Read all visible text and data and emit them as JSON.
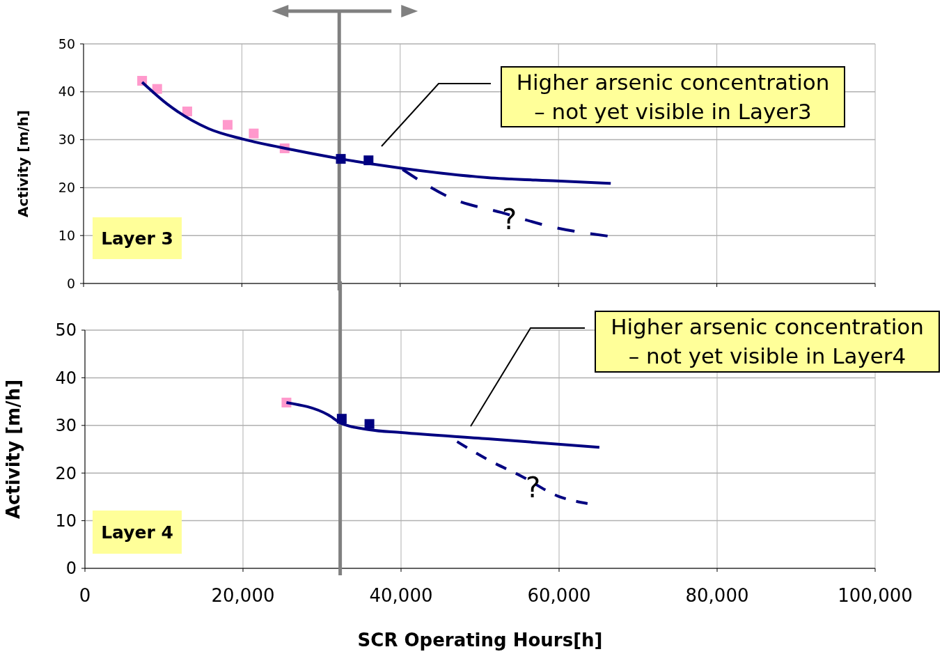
{
  "chart_data": [
    {
      "type": "scatter",
      "ylabel": "Activity [m/h]",
      "xlim": [
        0,
        100000
      ],
      "xticks": [
        0,
        20000,
        40000,
        60000,
        80000,
        100000
      ],
      "ylim": [
        0,
        50
      ],
      "yticks": [
        0,
        10,
        20,
        30,
        40,
        50
      ],
      "grid": true,
      "tick_labels": "y",
      "marker": "square",
      "series": [
        {
          "color": "#ff99cc",
          "x": [
            7400,
            9300,
            13100,
            18200,
            21500,
            25400
          ],
          "values": [
            42.3,
            40.6,
            35.9,
            33.1,
            31.3,
            28.2
          ]
        },
        {
          "color": "#000080",
          "x": [
            32500,
            36000
          ],
          "values": [
            26.0,
            25.7
          ]
        },
        {
          "type": "line",
          "color": "#000080",
          "marker": "none",
          "line_style": "solid",
          "x": [
            7400,
            10600,
            15800,
            20200,
            26400,
            32500,
            40000,
            51000,
            59800,
            66600
          ],
          "values": [
            42,
            37.4,
            32.3,
            30.1,
            27.9,
            26,
            24.1,
            22.1,
            21.4,
            20.9
          ]
        },
        {
          "type": "line",
          "color": "#000080",
          "marker": "none",
          "line_style": "dashed",
          "x": [
            40300,
            46600,
            52800,
            58900,
            66200
          ],
          "values": [
            23.8,
            17.7,
            14.8,
            11.9,
            9.9
          ]
        }
      ],
      "ref_lines": [
        {
          "axis": "x",
          "value": 32300,
          "color": "#808080"
        }
      ],
      "annotations": [
        "Higher arsenic concentration\n– not yet visible in Layer3",
        "Layer 3",
        {
          "text": "?",
          "x": 53800,
          "y": 13.4
        }
      ]
    },
    {
      "type": "scatter",
      "xlabel": "SCR Operating Hours[h]",
      "ylabel": "Activity [m/h]",
      "xlim": [
        0,
        100000
      ],
      "xticks": [
        {
          "value": 0,
          "label": "0"
        },
        {
          "value": 20000,
          "label": "20,000"
        },
        {
          "value": 40000,
          "label": "40,000"
        },
        {
          "value": 60000,
          "label": "60,000"
        },
        {
          "value": 80000,
          "label": "80,000"
        },
        {
          "value": 100000,
          "label": "100,000"
        }
      ],
      "ylim": [
        0,
        50
      ],
      "yticks": [
        0,
        10,
        20,
        30,
        40,
        50
      ],
      "grid": true,
      "marker": "square",
      "series": [
        {
          "color": "#ff99cc",
          "x": [
            25500
          ],
          "values": [
            34.8
          ]
        },
        {
          "color": "#000080",
          "x": [
            32500,
            36000
          ],
          "values": [
            31.4,
            30.3
          ]
        },
        {
          "type": "line",
          "color": "#000080",
          "marker": "none",
          "line_style": "solid",
          "x": [
            25500,
            30800,
            32500,
            36000,
            40000,
            51000,
            65100
          ],
          "values": [
            34.8,
            32.2,
            30.4,
            29.1,
            28.5,
            27.2,
            25.4
          ]
        },
        {
          "type": "line",
          "color": "#000080",
          "marker": "none",
          "line_style": "dashed",
          "x": [
            47100,
            51000,
            55400,
            59800,
            63600
          ],
          "values": [
            26.6,
            22.8,
            19.2,
            15.2,
            13.6
          ]
        }
      ],
      "ref_lines": [
        {
          "axis": "x",
          "value": 32300,
          "color": "#808080"
        }
      ],
      "annotations": [
        "Higher arsenic concentration\n– not yet visible in Layer4",
        "Layer 4",
        {
          "text": "?",
          "x": 56700,
          "y": 17.0
        }
      ]
    }
  ]
}
